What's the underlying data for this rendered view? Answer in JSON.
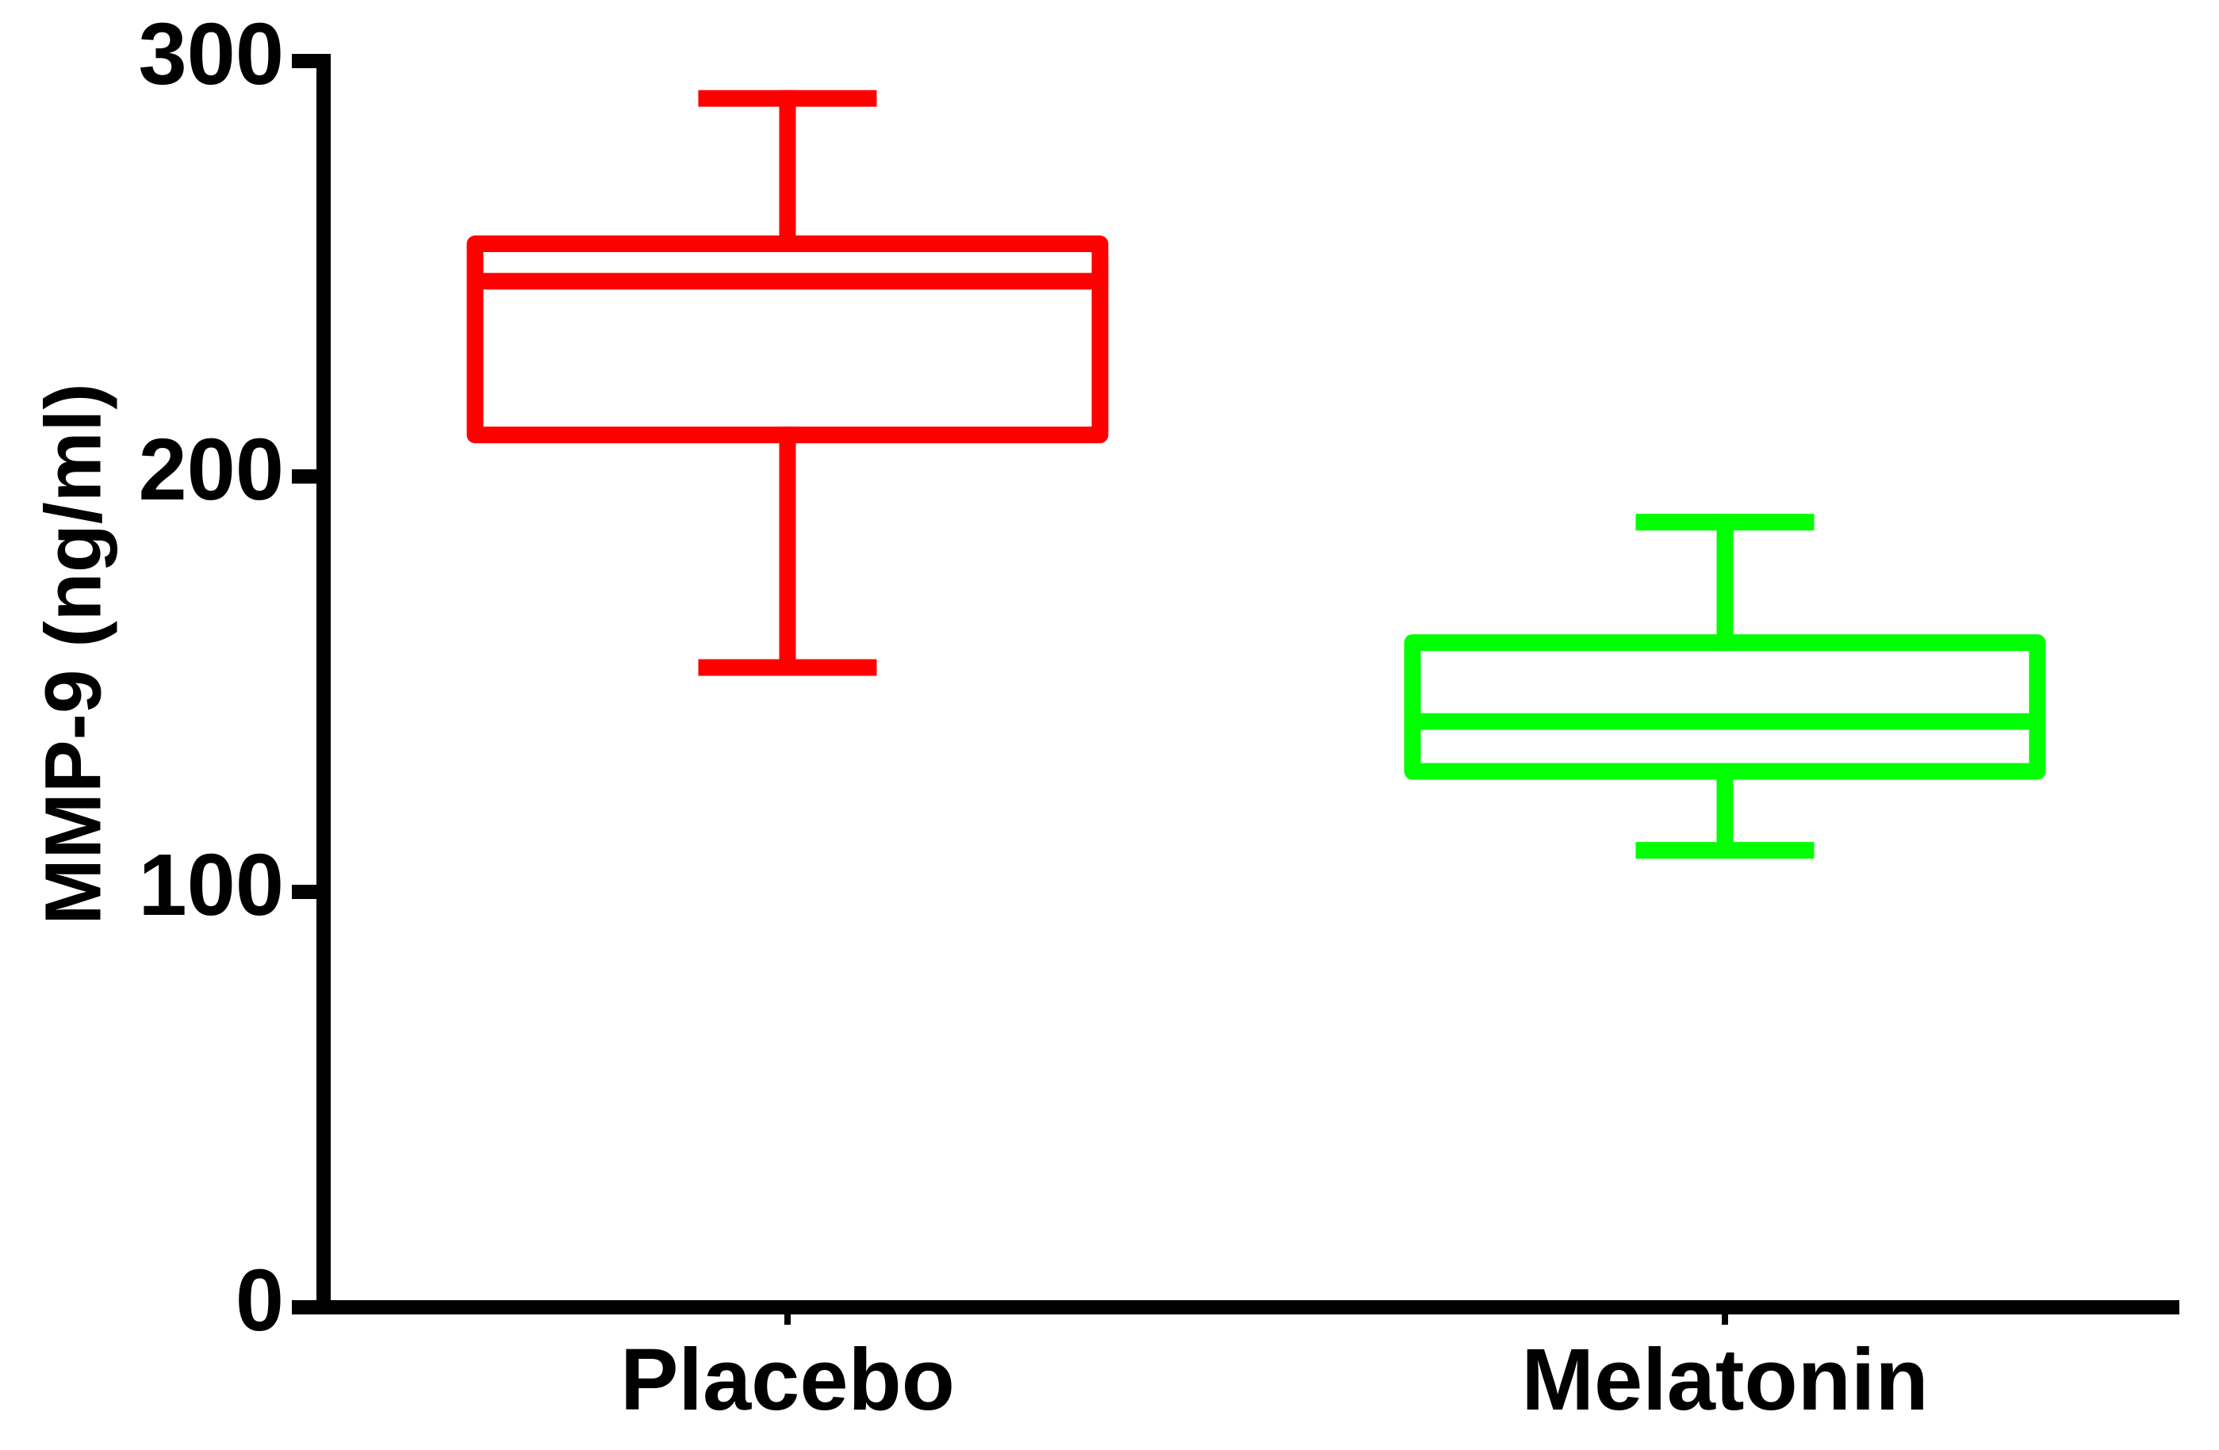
{
  "chart_data": {
    "type": "box",
    "y_label": "MMP-9 (ng/ml)",
    "categories": [
      "Placebo",
      "Melatonin"
    ],
    "boxes": [
      {
        "min": 154,
        "q1": 210,
        "median": 247,
        "q3": 256,
        "max": 291,
        "color": "#ff0000"
      },
      {
        "min": 110,
        "q1": 129,
        "median": 141,
        "q3": 160,
        "max": 189,
        "color": "#00ff00"
      }
    ],
    "ylim": [
      0,
      300
    ],
    "yticks": [
      0,
      100,
      200,
      300
    ],
    "grid": false
  }
}
